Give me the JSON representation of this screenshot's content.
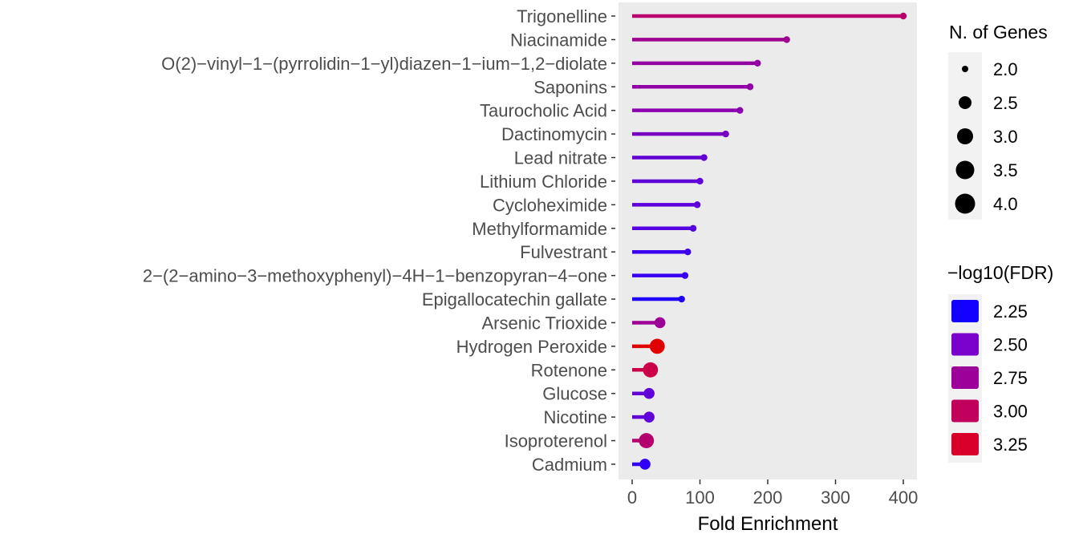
{
  "chart_data": {
    "type": "lollipop",
    "title": "",
    "xlabel": "Fold Enrichment",
    "ylabel": "",
    "xlim": [
      0,
      400
    ],
    "x_ticks": [
      0,
      100,
      200,
      300,
      400
    ],
    "grid": false,
    "panel_background": "#ebebeb",
    "categories": [
      "Trigonelline",
      "Niacinamide",
      "O(2)−vinyl−1−(pyrrolidin−1−yl)diazen−1−ium−1,2−diolate",
      "Saponins",
      "Taurocholic Acid",
      "Dactinomycin",
      "Lead nitrate",
      "Lithium Chloride",
      "Cycloheximide",
      "Methylformamide",
      "Fulvestrant",
      "2−(2−amino−3−methoxyphenyl)−4H−1−benzopyran−4−one",
      "Epigallocatechin gallate",
      "Arsenic Trioxide",
      "Hydrogen Peroxide",
      "Rotenone",
      "Glucose",
      "Nicotine",
      "Isoproterenol",
      "Cadmium"
    ],
    "fold_enrichment": [
      400,
      228,
      185,
      174,
      159,
      138,
      106,
      100,
      96,
      90,
      82,
      78,
      73,
      41,
      37,
      27,
      25,
      25,
      21,
      19
    ],
    "n_genes": [
      2,
      2,
      2,
      2,
      2,
      2,
      2,
      2,
      2,
      2,
      2,
      2,
      2,
      3,
      4,
      4,
      3,
      3,
      4,
      3
    ],
    "neg_log10_fdr": [
      3.0,
      2.75,
      2.7,
      2.7,
      2.65,
      2.55,
      2.45,
      2.45,
      2.45,
      2.4,
      2.3,
      2.3,
      2.2,
      2.75,
      3.3,
      3.05,
      2.45,
      2.45,
      2.95,
      2.3
    ],
    "colors": [
      "#b8006c",
      "#9e0090",
      "#9400a0",
      "#9000a6",
      "#8a00ae",
      "#7800c0",
      "#6300d4",
      "#6000d8",
      "#5e00da",
      "#5600e2",
      "#3c00f0",
      "#3800f2",
      "#1e00fa",
      "#9c0096",
      "#e00000",
      "#cc0048",
      "#6200d8",
      "#6000d8",
      "#b4006e",
      "#3000f6"
    ],
    "legend_size": {
      "title": "N. of Genes",
      "labels": [
        "2.0",
        "2.5",
        "3.0",
        "3.5",
        "4.0"
      ]
    },
    "legend_color": {
      "title": "−log10(FDR)",
      "labels": [
        "2.25",
        "2.50",
        "2.75",
        "3.00",
        "3.25"
      ],
      "colors": [
        "#1400ff",
        "#7a00cc",
        "#9c0099",
        "#c0005a",
        "#d8002a"
      ]
    }
  }
}
